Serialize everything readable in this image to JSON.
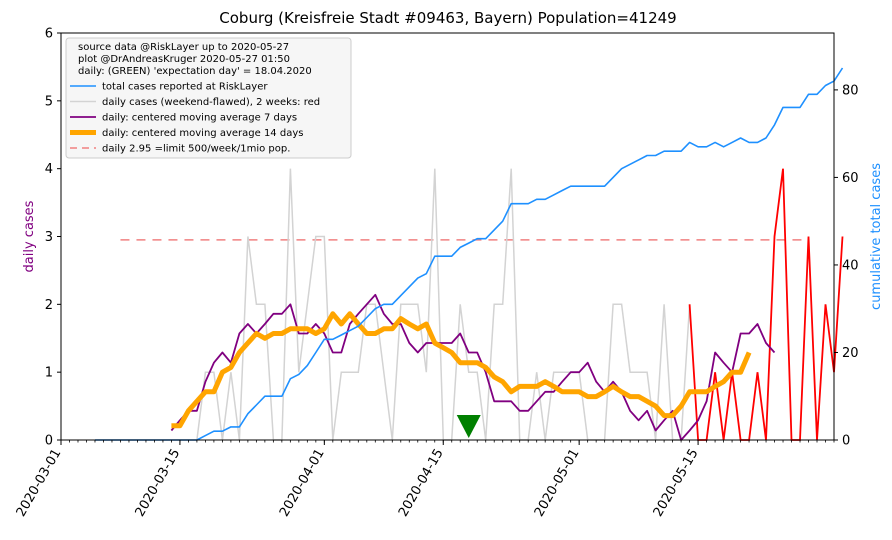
{
  "chart_data": {
    "type": "line",
    "title": "Coburg (Kreisfreie Stadt #09463, Bayern) Population=41249",
    "ylabel_left": "daily cases",
    "ylabel_right": "cumulative total cases",
    "ylim_left": [
      0,
      6
    ],
    "ylim_right": [
      0,
      93
    ],
    "yticks_left": [
      "0",
      "1",
      "2",
      "3",
      "4",
      "5",
      "6"
    ],
    "yticks_right": [
      "0",
      "20",
      "40",
      "60",
      "80"
    ],
    "xlim": [
      "2020-03-01",
      "2020-05-31"
    ],
    "xticks": [
      "2020-03-01",
      "2020-03-15",
      "2020-04-01",
      "2020-04-15",
      "2020-05-01",
      "2020-05-15"
    ],
    "legend_position": "top-left",
    "legend_text": [
      "source data @RiskLayer up to 2020-05-27",
      "plot @DrAndreasKruger 2020-05-27 01:50",
      "daily: (GREEN) 'expectation day' = 18.04.2020"
    ],
    "colors": {
      "cumulative": "#1e90ff",
      "daily": "#d3d3d3",
      "daily_recent": "#ff0000",
      "ma7": "#800080",
      "ma14": "#ffa500",
      "limit": "#f08080",
      "marker": "#008000",
      "left_axis_label": "#800080",
      "right_axis_label": "#1e90ff"
    },
    "series": [
      {
        "name": "total cases reported at RiskLayer",
        "axis": "right",
        "x_start": "2020-03-05",
        "values": [
          0,
          0,
          0,
          0,
          0,
          0,
          0,
          0,
          0,
          0,
          0,
          0,
          0,
          1,
          2,
          2,
          3,
          3,
          6,
          8,
          10,
          10,
          10,
          14,
          15,
          17,
          20,
          23,
          23,
          24,
          25,
          26,
          28,
          30,
          31,
          31,
          33,
          35,
          37,
          38,
          42,
          42,
          42,
          44,
          45,
          46,
          46,
          48,
          50,
          54,
          54,
          54,
          55,
          55,
          56,
          57,
          58,
          58,
          58,
          58,
          58,
          60,
          62,
          63,
          64,
          65,
          65,
          66,
          66,
          66,
          68,
          67,
          67,
          68,
          67,
          68,
          69,
          68,
          68,
          69,
          72,
          76,
          76,
          76,
          79,
          79,
          81,
          82,
          85
        ]
      },
      {
        "name": "daily cases (weekend-flawed), 2 weeks: red",
        "axis": "left",
        "x_start": "2020-03-05",
        "values": [
          0,
          0,
          0,
          0,
          0,
          0,
          0,
          0,
          0,
          0,
          0,
          0,
          0,
          1,
          1,
          0,
          1,
          0,
          3,
          2,
          2,
          0,
          0,
          4,
          1,
          2,
          3,
          3,
          0,
          1,
          1,
          1,
          2,
          2,
          1,
          0,
          2,
          2,
          2,
          1,
          4,
          0,
          0,
          2,
          1,
          1,
          0,
          2,
          2,
          4,
          0,
          0,
          1,
          0,
          1,
          1,
          1,
          1,
          0,
          0,
          0,
          2,
          2,
          1,
          1,
          1,
          0,
          2,
          0,
          0,
          2,
          0,
          0,
          1,
          0,
          1,
          0,
          0,
          1,
          0,
          3,
          4,
          0,
          0,
          3,
          0,
          2,
          1,
          3
        ]
      },
      {
        "name": "daily: centered moving average 7 days",
        "axis": "left",
        "x_start": "2020-03-14",
        "values": [
          0.14,
          0.29,
          0.43,
          0.43,
          0.86,
          1.14,
          1.29,
          1.14,
          1.57,
          1.71,
          1.57,
          1.71,
          1.86,
          1.86,
          2.0,
          1.57,
          1.57,
          1.71,
          1.57,
          1.29,
          1.29,
          1.71,
          1.86,
          2.0,
          2.14,
          1.86,
          1.71,
          1.71,
          1.43,
          1.29,
          1.43,
          1.43,
          1.43,
          1.43,
          1.57,
          1.29,
          1.29,
          1.0,
          0.57,
          0.57,
          0.57,
          0.43,
          0.43,
          0.57,
          0.71,
          0.71,
          0.86,
          1.0,
          1.0,
          1.14,
          0.86,
          0.71,
          0.86,
          0.71,
          0.43,
          0.29,
          0.43,
          0.14,
          0.29,
          0.43,
          0.0,
          0.14,
          0.29,
          0.57,
          1.29,
          1.14,
          1.0,
          1.57,
          1.57,
          1.71,
          1.43,
          1.29
        ]
      },
      {
        "name": "daily: centered moving average 14 days",
        "axis": "left",
        "x_start": "2020-03-14",
        "values": [
          0.21,
          0.21,
          0.43,
          0.57,
          0.71,
          0.71,
          1.0,
          1.07,
          1.29,
          1.43,
          1.57,
          1.5,
          1.57,
          1.57,
          1.64,
          1.64,
          1.64,
          1.57,
          1.64,
          1.86,
          1.71,
          1.86,
          1.71,
          1.57,
          1.57,
          1.64,
          1.64,
          1.79,
          1.71,
          1.64,
          1.71,
          1.43,
          1.36,
          1.29,
          1.14,
          1.14,
          1.14,
          1.07,
          0.93,
          0.86,
          0.71,
          0.79,
          0.79,
          0.79,
          0.86,
          0.79,
          0.71,
          0.71,
          0.71,
          0.64,
          0.64,
          0.71,
          0.79,
          0.71,
          0.64,
          0.64,
          0.57,
          0.5,
          0.36,
          0.36,
          0.5,
          0.71,
          0.71,
          0.71,
          0.79,
          0.86,
          1.0,
          1.0,
          1.29
        ]
      },
      {
        "name": "daily 2.95 =limit 500/week/1mio pop.",
        "axis": "left",
        "type": "hline",
        "value": 2.95,
        "x_range": [
          "2020-03-08",
          "2020-05-28"
        ]
      }
    ],
    "red_segment_start": "2020-05-14",
    "expectation_day": "2020-04-18"
  }
}
